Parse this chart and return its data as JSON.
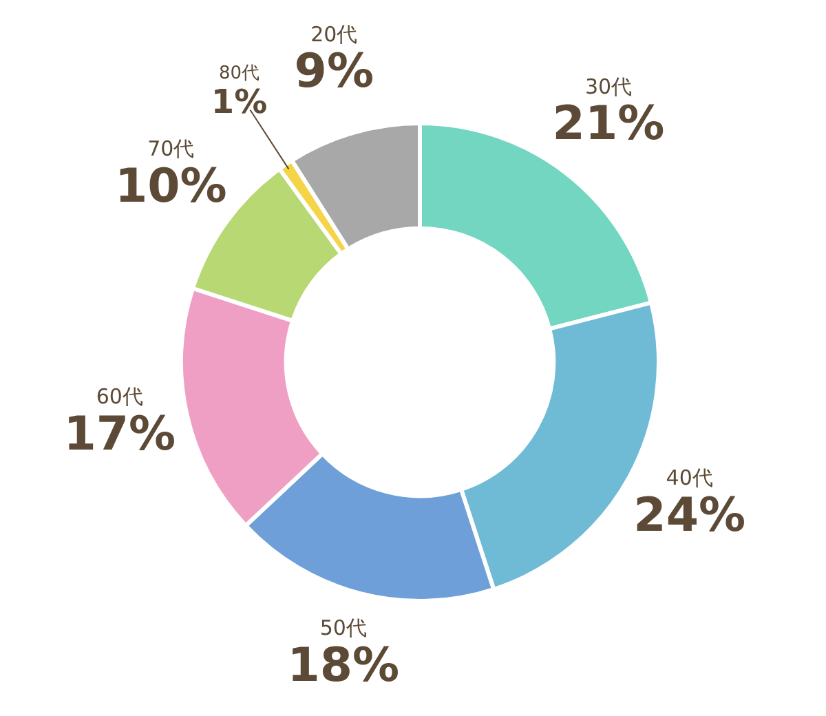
{
  "chart_data": {
    "type": "donut",
    "categories": [
      "30代",
      "40代",
      "50代",
      "60代",
      "70代",
      "80代",
      "20代"
    ],
    "values": [
      21,
      24,
      18,
      17,
      10,
      1,
      9
    ],
    "colors": [
      "#72d6c0",
      "#6fbbd6",
      "#6f9fd8",
      "#f09fc4",
      "#b8d873",
      "#f5d547",
      "#a8a8a8"
    ],
    "value_labels": [
      "21%",
      "24%",
      "18%",
      "17%",
      "10%",
      "1%",
      "9%"
    ]
  }
}
